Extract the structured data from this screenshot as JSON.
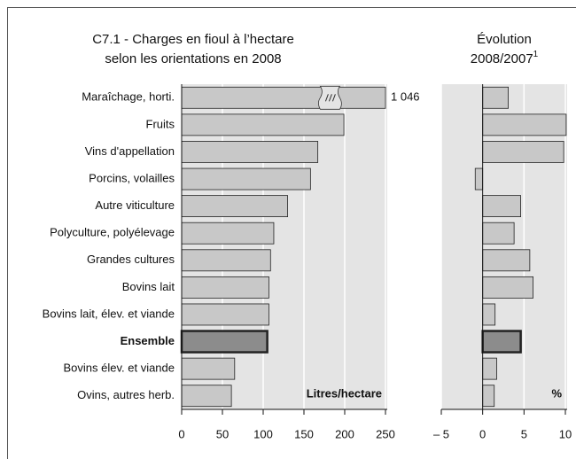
{
  "chart_data": [
    {
      "type": "bar",
      "orientation": "horizontal",
      "title": "C7.1 - Charges en fioul à l’hectare",
      "subtitle": "selon les orientations en 2008",
      "categories": [
        "Maraîchage, horti.",
        "Fruits",
        "Vins d'appellation",
        "Porcins, volailles",
        "Autre viticulture",
        "Polyculture, polyélevage",
        "Grandes cultures",
        "Bovins lait",
        "Bovins lait, élev. et viande",
        "Ensemble",
        "Bovins élev. et viande",
        "Ovins, autres herb."
      ],
      "values": [
        1046,
        199,
        167,
        158,
        130,
        113,
        109,
        107,
        107,
        105,
        65,
        61
      ],
      "value_labels": [
        "1 046",
        null,
        null,
        null,
        null,
        null,
        null,
        null,
        null,
        null,
        null,
        null
      ],
      "highlight_index": 9,
      "color": "#c8c8c8",
      "highlight_color": "#8c8c8c",
      "axis_label": "Litres/hectare",
      "xlim": [
        0,
        250
      ],
      "xticks": [
        0,
        50,
        100,
        150,
        200,
        250
      ],
      "grid": true,
      "axis_break": true
    },
    {
      "type": "bar",
      "orientation": "horizontal",
      "title": "Évolution",
      "subtitle": "2008/2007",
      "subtitle_note": "1",
      "values": [
        3.1,
        10.1,
        9.8,
        -0.9,
        4.6,
        3.8,
        5.7,
        6.1,
        1.5,
        4.6,
        1.7,
        1.4
      ],
      "highlight_index": 9,
      "color": "#c8c8c8",
      "highlight_color": "#8c8c8c",
      "axis_label": "%",
      "xlim": [
        -5,
        10
      ],
      "xticks": [
        {
          "value": -5,
          "label": "– 5"
        },
        0,
        5,
        10
      ],
      "grid": true
    }
  ]
}
